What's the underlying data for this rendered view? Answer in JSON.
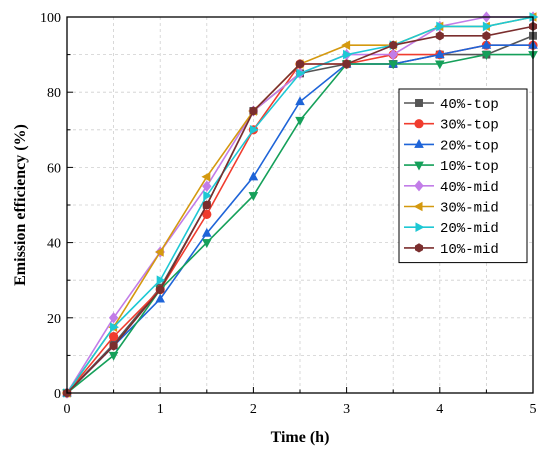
{
  "chart_data": {
    "type": "line",
    "xlabel": "Time (h)",
    "ylabel": "Emission efficiency (%)",
    "xlim": [
      0,
      5
    ],
    "ylim": [
      0,
      100
    ],
    "x_ticks": [
      0,
      1,
      2,
      3,
      4,
      5
    ],
    "y_ticks": [
      0,
      20,
      40,
      60,
      80,
      100
    ],
    "grid": true,
    "legend_position": "right",
    "x": [
      0,
      0.5,
      1,
      1.5,
      2,
      2.5,
      3,
      3.5,
      4,
      4.5,
      5
    ],
    "series": [
      {
        "name": "40%-top",
        "color": "#555555",
        "marker": "square",
        "values": [
          0,
          13,
          28,
          50,
          75,
          85,
          87.5,
          87.5,
          90,
          90,
          95
        ]
      },
      {
        "name": "30%-top",
        "color": "#f03c2e",
        "marker": "circle",
        "values": [
          0,
          15,
          27.5,
          47.5,
          70,
          87.5,
          87.5,
          90,
          90,
          92.5,
          92.5
        ]
      },
      {
        "name": "20%-top",
        "color": "#1e64d8",
        "marker": "triangle-up",
        "values": [
          0,
          12.5,
          25,
          42.5,
          57.5,
          77.5,
          87.5,
          87.5,
          90,
          92.5,
          92.5
        ]
      },
      {
        "name": "10%-top",
        "color": "#15a05a",
        "marker": "triangle-down",
        "values": [
          0,
          10,
          27.5,
          40,
          52.5,
          72.5,
          87.5,
          87.5,
          87.5,
          90,
          90
        ]
      },
      {
        "name": "40%-mid",
        "color": "#c27de8",
        "marker": "diamond",
        "values": [
          0,
          20,
          37.5,
          55,
          75,
          85,
          90,
          90,
          97.5,
          100,
          100
        ]
      },
      {
        "name": "30%-mid",
        "color": "#d4990f",
        "marker": "triangle-left",
        "values": [
          0,
          17.5,
          37.5,
          57.5,
          75,
          87.5,
          92.5,
          92.5,
          97.5,
          97.5,
          100
        ]
      },
      {
        "name": "20%-mid",
        "color": "#1ec8d4",
        "marker": "triangle-right",
        "values": [
          0,
          17.5,
          30,
          52.5,
          70,
          85,
          90,
          92.5,
          97.5,
          97.5,
          100
        ]
      },
      {
        "name": "10%-mid",
        "color": "#7b2e2e",
        "marker": "hexagon",
        "values": [
          0,
          12.5,
          27.5,
          50,
          75,
          87.5,
          87.5,
          92.5,
          95,
          95,
          97.5
        ]
      }
    ]
  }
}
